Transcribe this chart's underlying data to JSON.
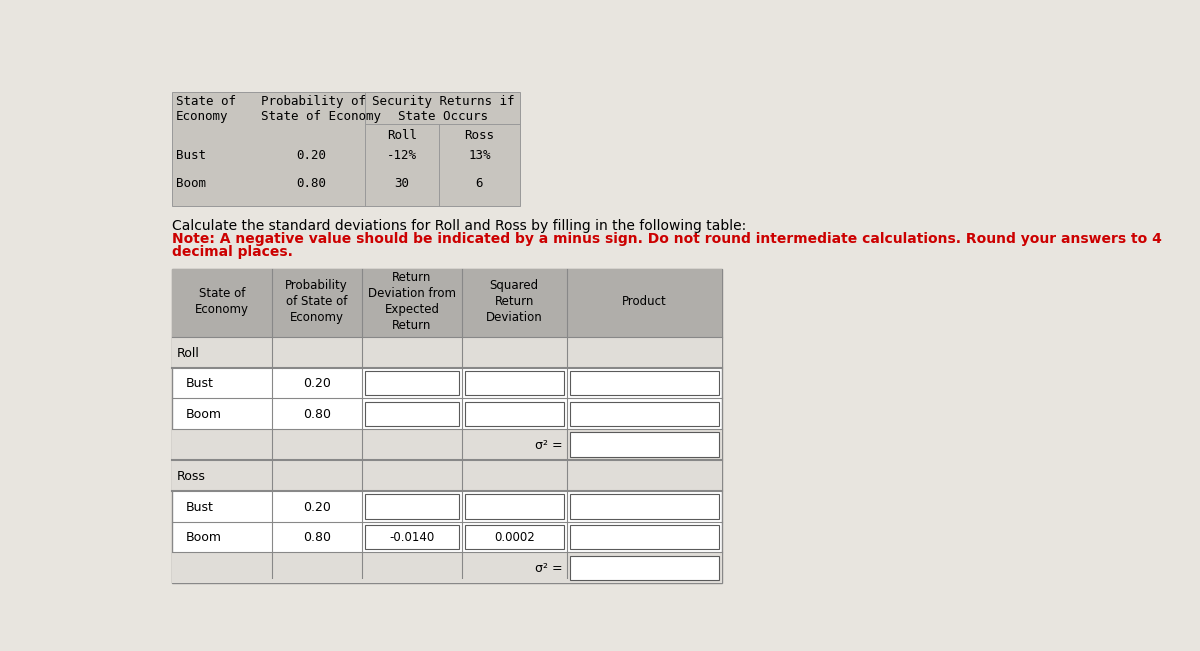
{
  "fig_bg": "#e8e5df",
  "top_table_bg": "#c8c5bf",
  "main_header_bg": "#b0aeaa",
  "white": "#ffffff",
  "input_border": "#5a5a5a",
  "cell_bg": "#e0ddd8",
  "top_table": {
    "rows": [
      [
        "Bust",
        "0.20",
        "-12%",
        "13%"
      ],
      [
        "Boom",
        "0.80",
        "30",
        "6"
      ]
    ]
  },
  "instruction_line1": "Calculate the standard deviations for Roll and Ross by filling in the following table:",
  "instruction_line2": "Note: A negative value should be indicated by a minus sign. Do not round intermediate calculations. Round your answers to 4",
  "instruction_line3": "decimal places.",
  "main_table": {
    "col_headers": [
      "State of\nEconomy",
      "Probability\nof State of\nEconomy",
      "Return\nDeviation from\nExpected\nReturn",
      "Squared\nReturn\nDeviation",
      "Product"
    ],
    "rows": [
      {
        "label": "Roll",
        "indent": false,
        "prob": "",
        "ret_dev": "",
        "sq_dev": "",
        "product": "",
        "is_sigma": false,
        "is_header_row": true
      },
      {
        "label": "Bust",
        "indent": true,
        "prob": "0.20",
        "ret_dev": "",
        "sq_dev": "",
        "product": "",
        "is_sigma": false,
        "is_header_row": false
      },
      {
        "label": "Boom",
        "indent": true,
        "prob": "0.80",
        "ret_dev": "",
        "sq_dev": "",
        "product": "",
        "is_sigma": false,
        "is_header_row": false
      },
      {
        "label": "",
        "indent": false,
        "prob": "",
        "ret_dev": "",
        "sq_dev": "σ² =",
        "product": "",
        "is_sigma": true,
        "is_header_row": false
      },
      {
        "label": "Ross",
        "indent": false,
        "prob": "",
        "ret_dev": "",
        "sq_dev": "",
        "product": "",
        "is_sigma": false,
        "is_header_row": true
      },
      {
        "label": "Bust",
        "indent": true,
        "prob": "0.20",
        "ret_dev": "",
        "sq_dev": "",
        "product": "",
        "is_sigma": false,
        "is_header_row": false
      },
      {
        "label": "Boom",
        "indent": true,
        "prob": "0.80",
        "ret_dev": "-0.0140",
        "sq_dev": "0.0002",
        "product": "",
        "is_sigma": false,
        "is_header_row": false
      },
      {
        "label": "",
        "indent": false,
        "prob": "",
        "ret_dev": "",
        "sq_dev": "σ² =",
        "product": "",
        "is_sigma": true,
        "is_header_row": false
      }
    ]
  }
}
